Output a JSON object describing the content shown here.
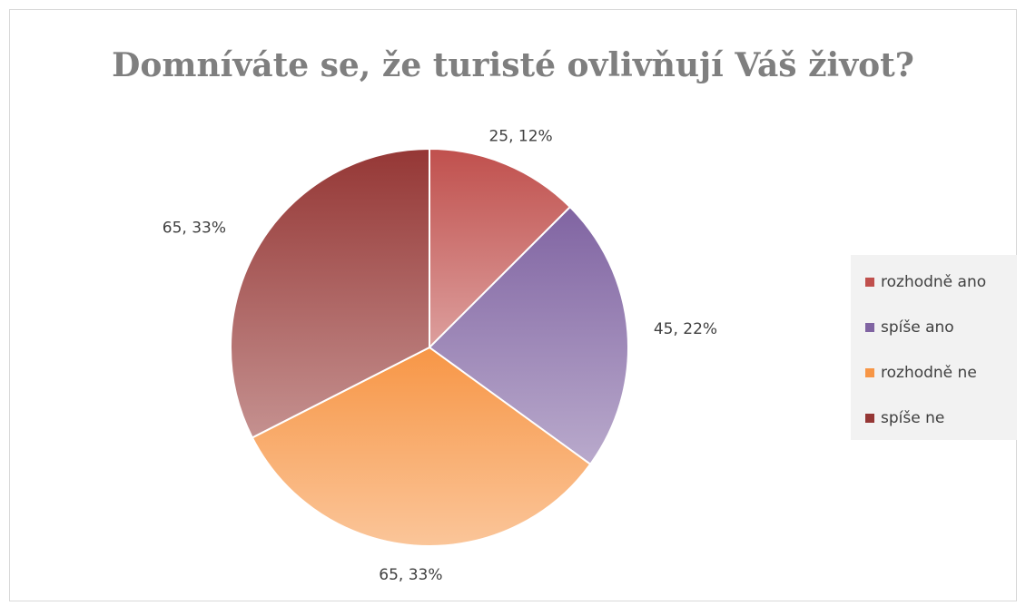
{
  "chart_data": {
    "type": "pie",
    "title": "Domníváte se, že turisté ovlivňují Váš život?",
    "categories": [
      "rozhodně ano",
      "spíše ano",
      "rozhodně ne",
      "spíše ne"
    ],
    "values": [
      25,
      45,
      65,
      65
    ],
    "value_labels": [
      "25, 12%",
      "45, 22%",
      "65, 33%",
      "65, 33%"
    ],
    "colors": [
      "#c0504d",
      "#8064a2",
      "#f79646",
      "#953735"
    ],
    "legend": "right"
  }
}
